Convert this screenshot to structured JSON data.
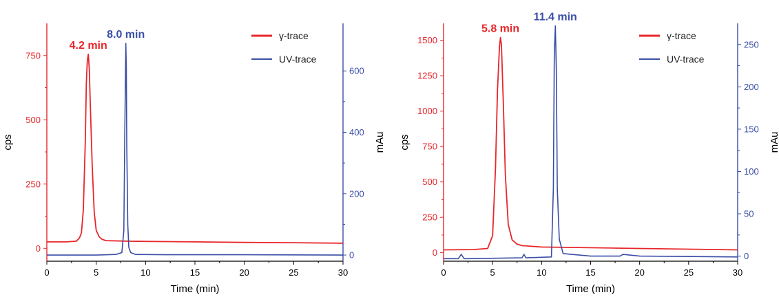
{
  "colors": {
    "gamma": "#e8262a",
    "uv": "#3a4ea6",
    "axis": "#000000"
  },
  "chart_data": [
    {
      "type": "line",
      "xlabel": "Time (min)",
      "ylabel": "cps",
      "y2label": "mAu",
      "xlim": [
        0,
        30
      ],
      "ylim": [
        -50,
        875
      ],
      "y2lim": [
        -20,
        755
      ],
      "xticks": [
        0,
        5,
        10,
        15,
        20,
        25,
        30
      ],
      "yticks": [
        0,
        250,
        500,
        750
      ],
      "y2ticks": [
        0,
        200,
        400,
        600
      ],
      "legend_position": "top-right",
      "series": [
        {
          "name": "γ-trace",
          "axis": "left",
          "x": [
            0,
            2,
            3,
            3.3,
            3.5,
            3.7,
            3.9,
            4.0,
            4.1,
            4.2,
            4.3,
            4.4,
            4.6,
            4.8,
            5.0,
            5.3,
            5.6,
            6,
            8,
            10,
            15,
            20,
            25,
            30
          ],
          "y": [
            25,
            25,
            28,
            40,
            60,
            150,
            420,
            640,
            730,
            755,
            700,
            560,
            320,
            140,
            70,
            45,
            35,
            30,
            28,
            27,
            25,
            23,
            22,
            20
          ]
        },
        {
          "name": "UV-trace",
          "axis": "right",
          "x": [
            0,
            5,
            7,
            7.6,
            7.8,
            7.9,
            8.0,
            8.05,
            8.1,
            8.2,
            8.3,
            8.5,
            9,
            12,
            20,
            30
          ],
          "y": [
            0,
            0,
            2,
            8,
            80,
            400,
            690,
            610,
            350,
            100,
            25,
            8,
            2,
            1,
            1,
            0
          ]
        }
      ],
      "annotations": [
        {
          "text": "4.2 min",
          "series": "γ-trace",
          "x": 4.2
        },
        {
          "text": "8.0 min",
          "series": "UV-trace",
          "x": 8.0
        }
      ]
    },
    {
      "type": "line",
      "xlabel": "Time (min)",
      "ylabel": "cps",
      "y2label": "mAu",
      "xlim": [
        0,
        30
      ],
      "ylim": [
        -60,
        1620
      ],
      "y2lim": [
        -6,
        275
      ],
      "xticks": [
        0,
        5,
        10,
        15,
        20,
        25,
        30
      ],
      "yticks": [
        0,
        250,
        500,
        750,
        1000,
        1250,
        1500
      ],
      "y2ticks": [
        0,
        50,
        100,
        150,
        200,
        250
      ],
      "legend_position": "top-right",
      "series": [
        {
          "name": "γ-trace",
          "axis": "left",
          "x": [
            0,
            3,
            4.5,
            5.0,
            5.3,
            5.5,
            5.7,
            5.8,
            5.9,
            6.1,
            6.3,
            6.6,
            7.0,
            7.5,
            8,
            10,
            15,
            20,
            25,
            30
          ],
          "y": [
            20,
            22,
            30,
            120,
            600,
            1150,
            1450,
            1520,
            1470,
            1050,
            550,
            200,
            90,
            60,
            50,
            40,
            35,
            30,
            25,
            20
          ]
        },
        {
          "name": "UV-trace",
          "axis": "right",
          "x": [
            0,
            1.5,
            1.8,
            2.1,
            2.5,
            8,
            8.2,
            8.4,
            11,
            11.2,
            11.3,
            11.4,
            11.5,
            11.6,
            11.8,
            12.2,
            15,
            18,
            18.3,
            20,
            30
          ],
          "y": [
            -3,
            -3,
            2,
            -3,
            -3,
            -2,
            2,
            -2,
            -1,
            80,
            240,
            272,
            220,
            80,
            20,
            3,
            0,
            0,
            2,
            0,
            -1
          ]
        }
      ],
      "annotations": [
        {
          "text": "5.8 min",
          "series": "γ-trace",
          "x": 5.8
        },
        {
          "text": "11.4 min",
          "series": "UV-trace",
          "x": 11.4
        }
      ]
    }
  ]
}
